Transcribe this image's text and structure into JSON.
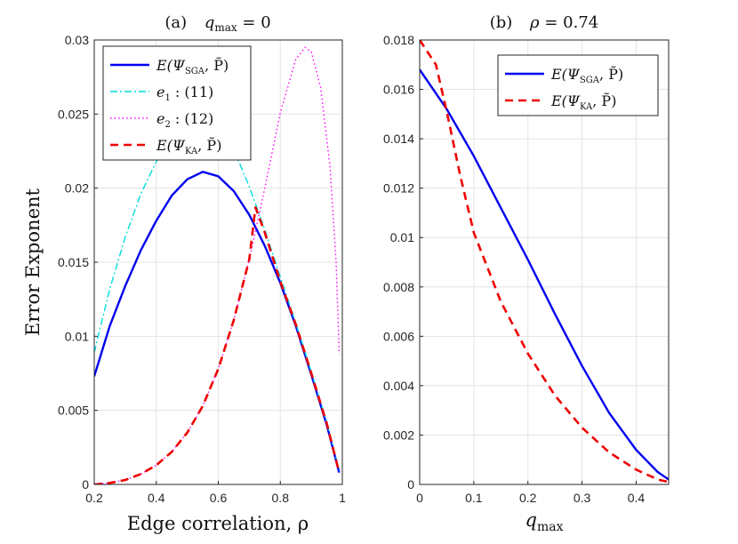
{
  "figure": {
    "ylabel": "Error Exponent"
  },
  "chart_data": [
    {
      "type": "line",
      "panel": "a",
      "title": "(a)   q_max = 0",
      "title_parts": {
        "prefix": "(a)",
        "var": "q",
        "sub": "max",
        "rest": " = 0"
      },
      "xlabel": "Edge correlation, ρ",
      "ylabel": "Error Exponent",
      "xlim": [
        0.2,
        1
      ],
      "ylim": [
        0,
        0.03
      ],
      "xticks": [
        0.2,
        0.4,
        0.6,
        0.8,
        1
      ],
      "xtick_labels": [
        "0.2",
        "0.4",
        "0.6",
        "0.8",
        "1"
      ],
      "yticks": [
        0,
        0.005,
        0.01,
        0.015,
        0.02,
        0.025,
        0.03
      ],
      "ytick_labels": [
        "0",
        "0.005",
        "0.01",
        "0.015",
        "0.02",
        "0.025",
        "0.03"
      ],
      "grid": true,
      "legend_position": "top-left",
      "series": [
        {
          "name": "E(Ψ_SGA, P̃)",
          "label_parts": [
            "E(Ψ",
            "SGA",
            ", P̃)"
          ],
          "color": "#0000ee",
          "style": "solid",
          "x": [
            0.2,
            0.25,
            0.3,
            0.35,
            0.4,
            0.45,
            0.5,
            0.55,
            0.6,
            0.65,
            0.7,
            0.75,
            0.8,
            0.85,
            0.9,
            0.95,
            0.99
          ],
          "y": [
            0.0073,
            0.0107,
            0.0134,
            0.0158,
            0.0178,
            0.0195,
            0.0206,
            0.0211,
            0.0208,
            0.0198,
            0.0182,
            0.0161,
            0.0136,
            0.0107,
            0.0074,
            0.004,
            0.0008
          ]
        },
        {
          "name": "e1 : (11)",
          "label_parts": [
            "e",
            "1",
            " : (11)"
          ],
          "color": "#00dddd",
          "style": "dashdot",
          "x": [
            0.2,
            0.25,
            0.3,
            0.35,
            0.4,
            0.45,
            0.5,
            0.55,
            0.6,
            0.65,
            0.7,
            0.75,
            0.8,
            0.85,
            0.9,
            0.95,
            0.99
          ],
          "y": [
            0.0089,
            0.0132,
            0.0167,
            0.0196,
            0.0218,
            0.0233,
            0.0243,
            0.0246,
            0.0243,
            0.0226,
            0.0201,
            0.0172,
            0.014,
            0.0109,
            0.0076,
            0.0042,
            0.0009
          ]
        },
        {
          "name": "e2 : (12)",
          "label_parts": [
            "e",
            "2",
            " : (12)"
          ],
          "color": "#ff00ff",
          "style": "dotted",
          "x": [
            0.2,
            0.25,
            0.3,
            0.35,
            0.4,
            0.45,
            0.5,
            0.55,
            0.6,
            0.65,
            0.7,
            0.75,
            0.8,
            0.85,
            0.88,
            0.9,
            0.93,
            0.96,
            0.98,
            0.99
          ],
          "y": [
            0.0,
            0.0001,
            0.0003,
            0.0007,
            0.0013,
            0.0022,
            0.0035,
            0.0053,
            0.0078,
            0.0111,
            0.0152,
            0.02,
            0.0251,
            0.0287,
            0.0295,
            0.0292,
            0.0268,
            0.0215,
            0.015,
            0.0088
          ]
        },
        {
          "name": "E(Ψ_KA, P̃)",
          "label_parts": [
            "E(Ψ",
            "KA",
            ", P̃)"
          ],
          "color": "#ee0000",
          "style": "dashed",
          "x": [
            0.2,
            0.25,
            0.3,
            0.35,
            0.4,
            0.45,
            0.5,
            0.55,
            0.6,
            0.65,
            0.7,
            0.72,
            0.75,
            0.8,
            0.85,
            0.9,
            0.95,
            0.99
          ],
          "y": [
            0.0,
            0.0001,
            0.0003,
            0.0007,
            0.0013,
            0.0022,
            0.0035,
            0.0053,
            0.0078,
            0.0111,
            0.0152,
            0.0187,
            0.017,
            0.0137,
            0.0108,
            0.0075,
            0.0041,
            0.0008
          ]
        }
      ]
    },
    {
      "type": "line",
      "panel": "b",
      "title": "(b)   ρ = 0.74",
      "title_parts": {
        "prefix": "(b)",
        "var": "ρ",
        "sub": "",
        "rest": " = 0.74"
      },
      "xlabel": "q_max",
      "xlabel_parts": {
        "var": "q",
        "sub": "max"
      },
      "xlim": [
        0,
        0.46
      ],
      "ylim": [
        0,
        0.018
      ],
      "xticks": [
        0,
        0.1,
        0.2,
        0.3,
        0.4
      ],
      "xtick_labels": [
        "0",
        "0.1",
        "0.2",
        "0.3",
        "0.4"
      ],
      "yticks": [
        0,
        0.002,
        0.004,
        0.006,
        0.008,
        0.01,
        0.012,
        0.014,
        0.016,
        0.018
      ],
      "ytick_labels": [
        "0",
        "0.002",
        "0.004",
        "0.006",
        "0.008",
        "0.01",
        "0.012",
        "0.014",
        "0.016",
        "0.018"
      ],
      "grid": true,
      "legend_position": "top-right",
      "series": [
        {
          "name": "E(Ψ_SGA, P̃)",
          "label_parts": [
            "E(Ψ",
            "SGA",
            ", P̃)"
          ],
          "color": "#0000ee",
          "style": "solid",
          "x": [
            0,
            0.05,
            0.1,
            0.15,
            0.2,
            0.25,
            0.3,
            0.35,
            0.4,
            0.44,
            0.46
          ],
          "y": [
            0.0168,
            0.0152,
            0.0133,
            0.0112,
            0.0091,
            0.0069,
            0.0048,
            0.0029,
            0.0014,
            0.0005,
            0.0002
          ]
        },
        {
          "name": "E(Ψ_KA, P̃)",
          "label_parts": [
            "E(Ψ",
            "KA",
            ", P̃)"
          ],
          "color": "#ee0000",
          "style": "dashed",
          "x": [
            0,
            0.015,
            0.03,
            0.05,
            0.075,
            0.1,
            0.15,
            0.2,
            0.25,
            0.3,
            0.35,
            0.4,
            0.44,
            0.46
          ],
          "y": [
            0.018,
            0.0175,
            0.017,
            0.0151,
            0.0125,
            0.0102,
            0.0074,
            0.0053,
            0.0036,
            0.0023,
            0.0013,
            0.0006,
            0.0002,
            0.0001
          ]
        }
      ]
    }
  ]
}
